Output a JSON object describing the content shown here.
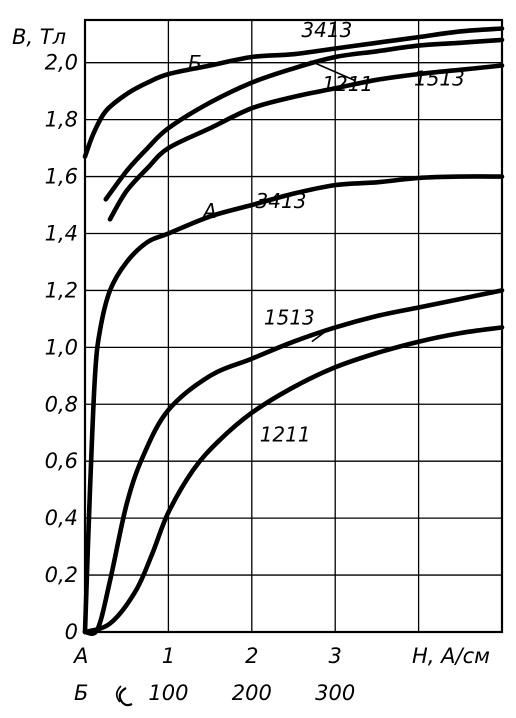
{
  "chart_data": {
    "type": "line",
    "title": "",
    "ylabel": "B, Тл",
    "xlabel": "H, A/см",
    "ylim": [
      0,
      2.15
    ],
    "grid": true,
    "y_ticks": [
      "0",
      "0,2",
      "0,4",
      "0,6",
      "0,8",
      "1,0",
      "1,2",
      "1,4",
      "1,6",
      "1,8",
      "2,0"
    ],
    "x_axis_A": {
      "marker": "А",
      "ticks": [
        "1",
        "2",
        "3"
      ],
      "xlim": [
        0,
        5
      ]
    },
    "x_axis_B": {
      "marker": "Б",
      "ticks": [
        "100",
        "200",
        "300"
      ],
      "xlim": [
        0,
        500
      ]
    },
    "group_labels": {
      "A": "А",
      "B": "Б"
    },
    "series": [
      {
        "name": "3413",
        "group": "A",
        "points": [
          [
            0,
            0
          ],
          [
            0.06,
            0.5
          ],
          [
            0.12,
            0.9
          ],
          [
            0.18,
            1.06
          ],
          [
            0.3,
            1.2
          ],
          [
            0.5,
            1.3
          ],
          [
            0.75,
            1.37
          ],
          [
            1,
            1.4
          ],
          [
            1.5,
            1.46
          ],
          [
            2,
            1.5
          ],
          [
            2.5,
            1.54
          ],
          [
            3,
            1.57
          ],
          [
            3.5,
            1.58
          ],
          [
            4,
            1.595
          ],
          [
            4.5,
            1.6
          ],
          [
            5,
            1.6
          ]
        ]
      },
      {
        "name": "1513",
        "group": "A",
        "points": [
          [
            0,
            0
          ],
          [
            0.15,
            0.01
          ],
          [
            0.3,
            0.18
          ],
          [
            0.5,
            0.45
          ],
          [
            0.7,
            0.62
          ],
          [
            1,
            0.78
          ],
          [
            1.5,
            0.9
          ],
          [
            2,
            0.96
          ],
          [
            2.5,
            1.02
          ],
          [
            3,
            1.07
          ],
          [
            3.5,
            1.11
          ],
          [
            4,
            1.14
          ],
          [
            4.5,
            1.17
          ],
          [
            5,
            1.2
          ]
        ]
      },
      {
        "name": "1211",
        "group": "A",
        "points": [
          [
            0,
            0
          ],
          [
            0.3,
            0.03
          ],
          [
            0.6,
            0.14
          ],
          [
            0.8,
            0.27
          ],
          [
            1,
            0.42
          ],
          [
            1.3,
            0.57
          ],
          [
            1.6,
            0.67
          ],
          [
            2,
            0.77
          ],
          [
            2.5,
            0.86
          ],
          [
            3,
            0.93
          ],
          [
            3.5,
            0.98
          ],
          [
            4,
            1.02
          ],
          [
            4.5,
            1.05
          ],
          [
            5,
            1.07
          ]
        ]
      },
      {
        "name": "3413",
        "group": "B",
        "points": [
          [
            0,
            1.67
          ],
          [
            10,
            1.75
          ],
          [
            25,
            1.83
          ],
          [
            50,
            1.89
          ],
          [
            75,
            1.93
          ],
          [
            100,
            1.96
          ],
          [
            150,
            1.99
          ],
          [
            200,
            2.02
          ],
          [
            250,
            2.03
          ],
          [
            300,
            2.05
          ],
          [
            350,
            2.07
          ],
          [
            400,
            2.09
          ],
          [
            450,
            2.11
          ],
          [
            500,
            2.12
          ]
        ]
      },
      {
        "name": "1211",
        "group": "B",
        "points": [
          [
            25,
            1.52
          ],
          [
            50,
            1.62
          ],
          [
            75,
            1.7
          ],
          [
            100,
            1.77
          ],
          [
            150,
            1.86
          ],
          [
            200,
            1.93
          ],
          [
            250,
            1.98
          ],
          [
            300,
            2.02
          ],
          [
            350,
            2.04
          ],
          [
            400,
            2.06
          ],
          [
            450,
            2.07
          ],
          [
            500,
            2.08
          ]
        ]
      },
      {
        "name": "1513",
        "group": "B",
        "points": [
          [
            30,
            1.45
          ],
          [
            50,
            1.55
          ],
          [
            75,
            1.63
          ],
          [
            100,
            1.7
          ],
          [
            150,
            1.77
          ],
          [
            200,
            1.84
          ],
          [
            250,
            1.88
          ],
          [
            300,
            1.91
          ],
          [
            350,
            1.94
          ],
          [
            400,
            1.96
          ],
          [
            450,
            1.975
          ],
          [
            500,
            1.99
          ]
        ]
      }
    ],
    "annotations": [
      {
        "text": "3413",
        "group": "B",
        "x": 290,
        "y": 2.09
      },
      {
        "text": "1211",
        "group": "B",
        "x": 315,
        "y": 1.9
      },
      {
        "text": "1513",
        "group": "B",
        "x": 425,
        "y": 1.92
      },
      {
        "text": "3413",
        "group": "A",
        "x": 2.35,
        "y": 1.49
      },
      {
        "text": "1513",
        "group": "A",
        "x": 2.45,
        "y": 1.08
      },
      {
        "text": "1211",
        "group": "A",
        "x": 2.4,
        "y": 0.67
      }
    ]
  }
}
